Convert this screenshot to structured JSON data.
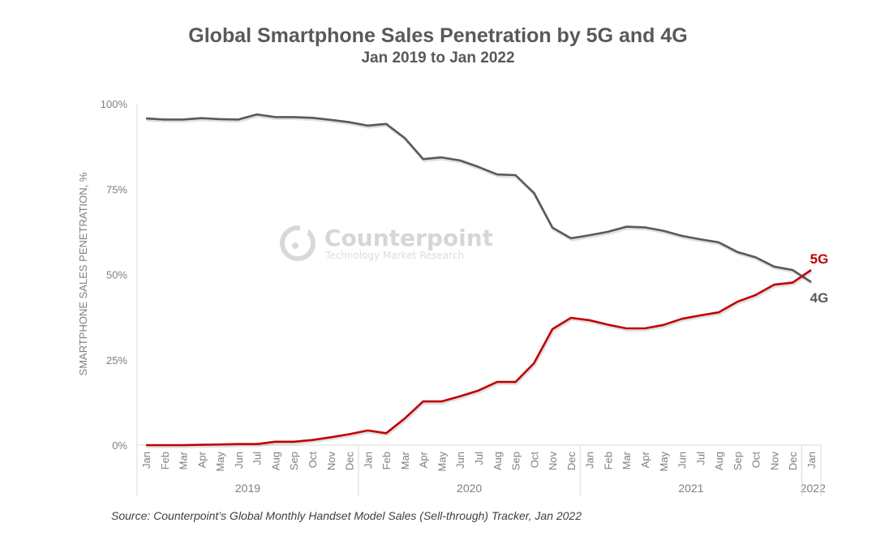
{
  "chart_data": {
    "type": "line",
    "title": "Global Smartphone Sales Penetration by 5G and 4G",
    "subtitle": "Jan 2019 to Jan 2022",
    "xlabel": "",
    "ylabel": "SMARTPHONE SALES PENETRATION, %",
    "ylim": [
      0,
      100
    ],
    "yticks": [
      0,
      25,
      50,
      75,
      100
    ],
    "ytick_labels": [
      "0%",
      "25%",
      "50%",
      "75%",
      "100%"
    ],
    "grid": false,
    "legend": "end-of-line labels (right)",
    "x": [
      "Jan",
      "Feb",
      "Mar",
      "Apr",
      "May",
      "Jun",
      "Jul",
      "Aug",
      "Sep",
      "Oct",
      "Nov",
      "Dec",
      "Jan",
      "Feb",
      "Mar",
      "Apr",
      "May",
      "Jun",
      "Jul",
      "Aug",
      "Sep",
      "Oct",
      "Nov",
      "Dec",
      "Jan",
      "Feb",
      "Mar",
      "Apr",
      "May",
      "Jun",
      "Jul",
      "Aug",
      "Sep",
      "Oct",
      "Nov",
      "Dec",
      "Jan"
    ],
    "year_groups": [
      {
        "label": "2019",
        "count": 12
      },
      {
        "label": "2020",
        "count": 12
      },
      {
        "label": "2021",
        "count": 12
      },
      {
        "label": "2022",
        "count": 1
      }
    ],
    "series": [
      {
        "name": "4G",
        "color": "#595959",
        "values": [
          95.7,
          95.4,
          95.4,
          95.8,
          95.5,
          95.4,
          96.9,
          96.1,
          96.1,
          95.9,
          95.3,
          94.6,
          93.6,
          94.1,
          90.0,
          83.8,
          84.3,
          83.4,
          81.5,
          79.3,
          79.1,
          73.9,
          63.7,
          60.6,
          61.5,
          62.5,
          64.0,
          63.8,
          62.8,
          61.3,
          60.3,
          59.4,
          56.6,
          55.0,
          52.3,
          51.3,
          47.8
        ]
      },
      {
        "name": "5G",
        "color": "#c00000",
        "values": [
          0.0,
          0.0,
          0.0,
          0.1,
          0.2,
          0.3,
          0.3,
          1.0,
          1.0,
          1.5,
          2.3,
          3.2,
          4.3,
          3.5,
          7.8,
          12.8,
          12.8,
          14.3,
          16.0,
          18.5,
          18.5,
          24.0,
          34.0,
          37.3,
          36.6,
          35.3,
          34.2,
          34.2,
          35.2,
          37.0,
          38.0,
          38.9,
          42.0,
          44.0,
          47.0,
          47.6,
          51.3
        ]
      }
    ]
  },
  "watermark": {
    "brand": "Counterpoint",
    "tagline": "Technology Market Research",
    "icon": "counterpoint-logo-icon"
  },
  "source_note": "Source: Counterpoint’s Global Monthly Handset Model Sales (Sell-through) Tracker, Jan 2022"
}
